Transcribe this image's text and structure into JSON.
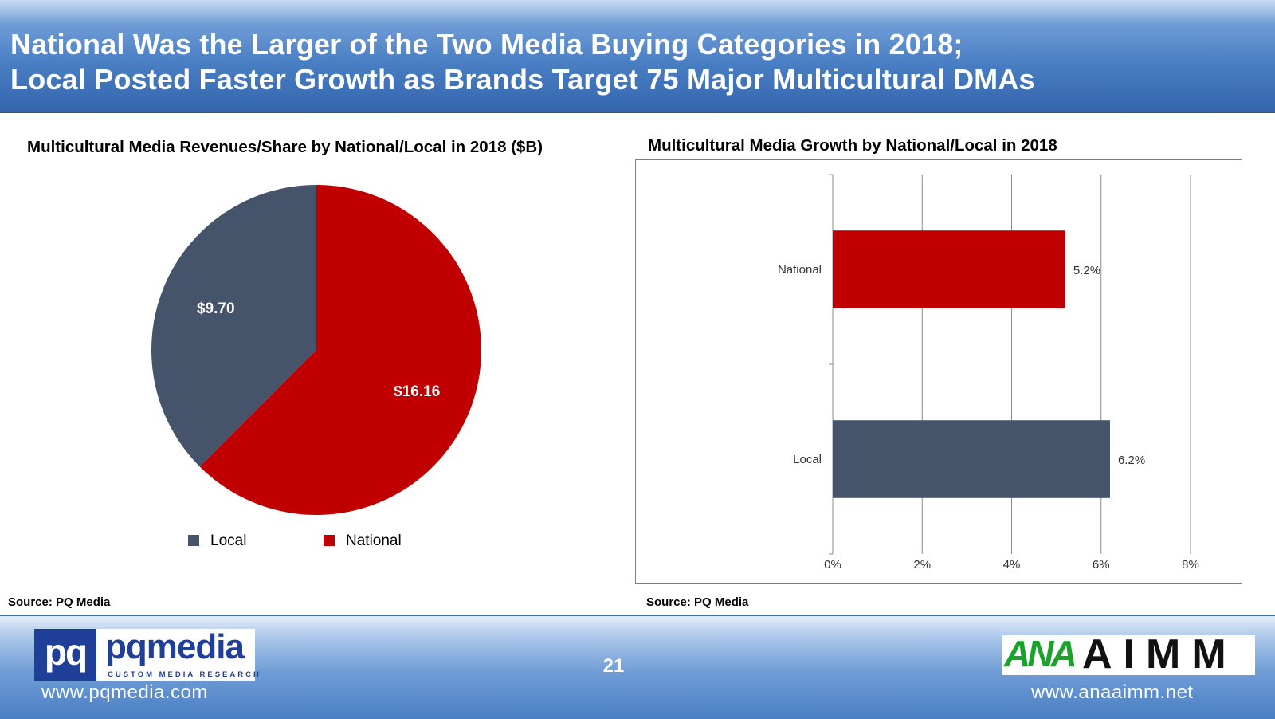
{
  "header": {
    "title_line1": "National Was the Larger of the Two Media Buying Categories in 2018;",
    "title_line2": "Local Posted Faster Growth as Brands Target 75 Major Multicultural DMAs"
  },
  "colors": {
    "local": "#45546b",
    "national": "#c00000"
  },
  "chart_data": [
    {
      "type": "pie",
      "title": "Multicultural Media Revenues/Share by National/Local in 2018 ($B)",
      "categories": [
        "Local",
        "National"
      ],
      "values": [
        9.7,
        16.16
      ],
      "labels": [
        "$9.70",
        "$16.16"
      ],
      "legend_position": "bottom",
      "source": "Source: PQ Media"
    },
    {
      "type": "bar",
      "orientation": "horizontal",
      "title": "Multicultural Media Growth by National/Local in 2018",
      "categories": [
        "National",
        "Local"
      ],
      "values": [
        5.2,
        6.2
      ],
      "labels": [
        "5.2%",
        "6.2%"
      ],
      "xlim": [
        0,
        8
      ],
      "xticks": [
        "0%",
        "2%",
        "4%",
        "6%",
        "8%"
      ],
      "grid": true,
      "source": "Source: PQ Media"
    }
  ],
  "footer": {
    "page_number": "21",
    "pq_logo": {
      "mark": "pq",
      "word": "pqmedia",
      "tagline": "CUSTOM MEDIA RESEARCH"
    },
    "pq_url": "www.pqmedia.com",
    "ana_logo": {
      "ana": "ANA",
      "aimm": "AIMM"
    },
    "ana_url": "www.anaaimm.net"
  }
}
